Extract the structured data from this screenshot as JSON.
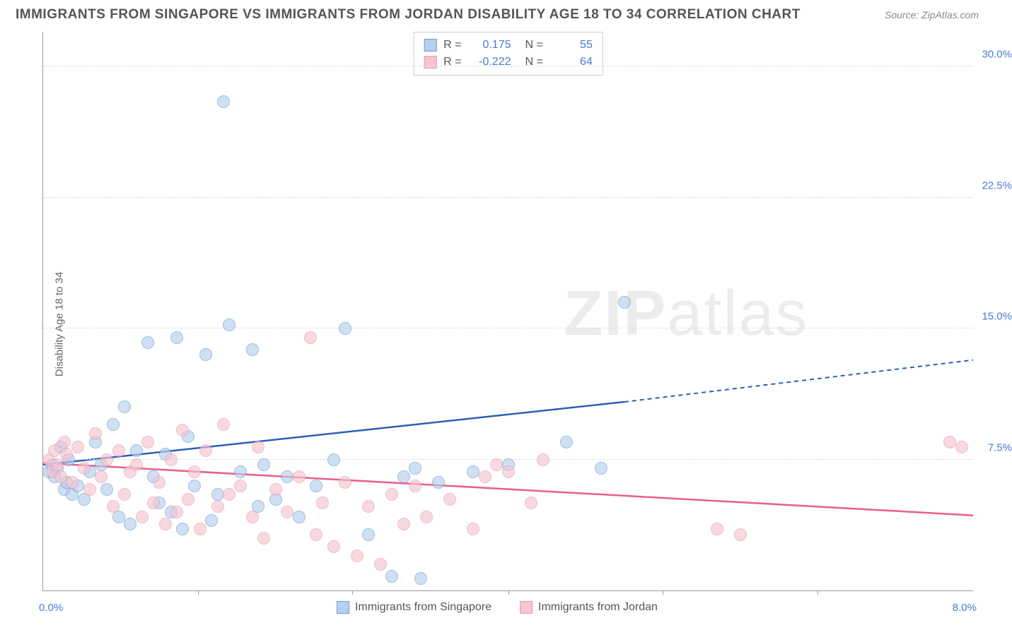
{
  "header": {
    "title": "IMMIGRANTS FROM SINGAPORE VS IMMIGRANTS FROM JORDAN DISABILITY AGE 18 TO 34 CORRELATION CHART",
    "source": "Source: ZipAtlas.com"
  },
  "chart": {
    "type": "scatter",
    "y_axis_label": "Disability Age 18 to 34",
    "x_min_label": "0.0%",
    "x_max_label": "8.0%",
    "xlim": [
      0,
      8
    ],
    "ylim": [
      0,
      32
    ],
    "y_gridlines": [
      {
        "value": 7.5,
        "label": "7.5%"
      },
      {
        "value": 15.0,
        "label": "15.0%"
      },
      {
        "value": 22.5,
        "label": "22.5%"
      },
      {
        "value": 30.0,
        "label": "30.0%"
      }
    ],
    "x_ticks": [
      1.33,
      2.66,
      4.0,
      5.33,
      6.66
    ],
    "axis_label_color": "#4a7bd0",
    "grid_color": "#dddddd",
    "border_color": "#999999",
    "watermark": {
      "bold": "ZIP",
      "rest": "atlas"
    },
    "series": [
      {
        "name": "Immigrants from Singapore",
        "fill_color": "#b8d0ed",
        "stroke_color": "#6a9bd8",
        "line_color": "#2c5fb5",
        "R": "0.175",
        "N": "55",
        "trend": {
          "x1": 0,
          "y1": 7.2,
          "x2_solid": 5.0,
          "y2_solid": 10.8,
          "x2": 8.0,
          "y2": 13.2
        },
        "points": [
          [
            0.05,
            6.8
          ],
          [
            0.08,
            7.2
          ],
          [
            0.1,
            6.5
          ],
          [
            0.12,
            7.0
          ],
          [
            0.15,
            8.2
          ],
          [
            0.18,
            5.8
          ],
          [
            0.2,
            6.2
          ],
          [
            0.22,
            7.5
          ],
          [
            0.25,
            5.5
          ],
          [
            0.3,
            6.0
          ],
          [
            0.35,
            5.2
          ],
          [
            0.4,
            6.8
          ],
          [
            0.45,
            8.5
          ],
          [
            0.5,
            7.2
          ],
          [
            0.55,
            5.8
          ],
          [
            0.6,
            9.5
          ],
          [
            0.65,
            4.2
          ],
          [
            0.7,
            10.5
          ],
          [
            0.75,
            3.8
          ],
          [
            0.8,
            8.0
          ],
          [
            0.9,
            14.2
          ],
          [
            0.95,
            6.5
          ],
          [
            1.0,
            5.0
          ],
          [
            1.05,
            7.8
          ],
          [
            1.1,
            4.5
          ],
          [
            1.15,
            14.5
          ],
          [
            1.2,
            3.5
          ],
          [
            1.25,
            8.8
          ],
          [
            1.3,
            6.0
          ],
          [
            1.4,
            13.5
          ],
          [
            1.45,
            4.0
          ],
          [
            1.5,
            5.5
          ],
          [
            1.55,
            28.0
          ],
          [
            1.6,
            15.2
          ],
          [
            1.7,
            6.8
          ],
          [
            1.8,
            13.8
          ],
          [
            1.85,
            4.8
          ],
          [
            1.9,
            7.2
          ],
          [
            2.0,
            5.2
          ],
          [
            2.1,
            6.5
          ],
          [
            2.2,
            4.2
          ],
          [
            2.35,
            6.0
          ],
          [
            2.5,
            7.5
          ],
          [
            2.6,
            15.0
          ],
          [
            2.8,
            3.2
          ],
          [
            3.0,
            0.8
          ],
          [
            3.1,
            6.5
          ],
          [
            3.2,
            7.0
          ],
          [
            3.25,
            0.7
          ],
          [
            3.4,
            6.2
          ],
          [
            3.7,
            6.8
          ],
          [
            4.0,
            7.2
          ],
          [
            4.5,
            8.5
          ],
          [
            5.0,
            16.5
          ],
          [
            4.8,
            7.0
          ]
        ]
      },
      {
        "name": "Immigrants from Jordan",
        "fill_color": "#f5c5d0",
        "stroke_color": "#e89aad",
        "line_color": "#e85f85",
        "R": "-0.222",
        "N": "64",
        "trend": {
          "x1": 0,
          "y1": 7.3,
          "x2_solid": 8.0,
          "y2_solid": 4.3,
          "x2": 8.0,
          "y2": 4.3
        },
        "points": [
          [
            0.05,
            7.5
          ],
          [
            0.08,
            6.8
          ],
          [
            0.1,
            8.0
          ],
          [
            0.12,
            7.2
          ],
          [
            0.15,
            6.5
          ],
          [
            0.18,
            8.5
          ],
          [
            0.2,
            7.8
          ],
          [
            0.25,
            6.2
          ],
          [
            0.3,
            8.2
          ],
          [
            0.35,
            7.0
          ],
          [
            0.4,
            5.8
          ],
          [
            0.45,
            9.0
          ],
          [
            0.5,
            6.5
          ],
          [
            0.55,
            7.5
          ],
          [
            0.6,
            4.8
          ],
          [
            0.65,
            8.0
          ],
          [
            0.7,
            5.5
          ],
          [
            0.75,
            6.8
          ],
          [
            0.8,
            7.2
          ],
          [
            0.85,
            4.2
          ],
          [
            0.9,
            8.5
          ],
          [
            0.95,
            5.0
          ],
          [
            1.0,
            6.2
          ],
          [
            1.05,
            3.8
          ],
          [
            1.1,
            7.5
          ],
          [
            1.15,
            4.5
          ],
          [
            1.2,
            9.2
          ],
          [
            1.25,
            5.2
          ],
          [
            1.3,
            6.8
          ],
          [
            1.35,
            3.5
          ],
          [
            1.4,
            8.0
          ],
          [
            1.5,
            4.8
          ],
          [
            1.55,
            9.5
          ],
          [
            1.6,
            5.5
          ],
          [
            1.7,
            6.0
          ],
          [
            1.8,
            4.2
          ],
          [
            1.85,
            8.2
          ],
          [
            1.9,
            3.0
          ],
          [
            2.0,
            5.8
          ],
          [
            2.1,
            4.5
          ],
          [
            2.2,
            6.5
          ],
          [
            2.3,
            14.5
          ],
          [
            2.35,
            3.2
          ],
          [
            2.4,
            5.0
          ],
          [
            2.5,
            2.5
          ],
          [
            2.6,
            6.2
          ],
          [
            2.7,
            2.0
          ],
          [
            2.8,
            4.8
          ],
          [
            2.9,
            1.5
          ],
          [
            3.0,
            5.5
          ],
          [
            3.1,
            3.8
          ],
          [
            3.2,
            6.0
          ],
          [
            3.3,
            4.2
          ],
          [
            3.5,
            5.2
          ],
          [
            3.7,
            3.5
          ],
          [
            3.8,
            6.5
          ],
          [
            3.9,
            7.2
          ],
          [
            4.0,
            6.8
          ],
          [
            4.2,
            5.0
          ],
          [
            4.3,
            7.5
          ],
          [
            5.8,
            3.5
          ],
          [
            6.0,
            3.2
          ],
          [
            7.8,
            8.5
          ],
          [
            7.9,
            8.2
          ]
        ]
      }
    ]
  },
  "stat_box_labels": {
    "R": "R =",
    "N": "N ="
  }
}
